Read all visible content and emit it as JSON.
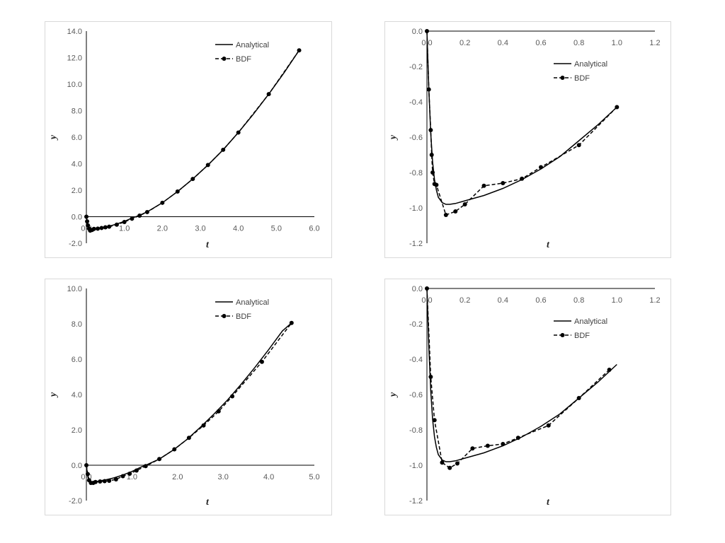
{
  "chart_data": [
    {
      "type": "line",
      "xlabel": "t",
      "ylabel": "y",
      "xlim": [
        0,
        6
      ],
      "ylim": [
        -2,
        14
      ],
      "x_ticks": [
        "0.0",
        "1.0",
        "2.0",
        "3.0",
        "4.0",
        "5.0",
        "6.0"
      ],
      "y_ticks": [
        "-2.0",
        "0.0",
        "2.0",
        "4.0",
        "6.0",
        "8.0",
        "10.0",
        "12.0",
        "14.0"
      ],
      "legend": {
        "placement": "top-center",
        "entries": [
          "Analytical",
          "BDF"
        ]
      },
      "grid": false,
      "series": [
        {
          "name": "Analytical",
          "style": "solid",
          "x": [
            0,
            0.02,
            0.04,
            0.07,
            0.1,
            0.15,
            0.2,
            0.3,
            0.4,
            0.5,
            0.6,
            0.8,
            1.0,
            1.2,
            1.4,
            1.6,
            2.0,
            2.4,
            2.8,
            3.2,
            3.6,
            4.0,
            4.4,
            4.8,
            5.2,
            5.6
          ],
          "y": [
            0,
            -0.45,
            -0.75,
            -0.95,
            -0.98,
            -0.97,
            -0.94,
            -0.88,
            -0.84,
            -0.78,
            -0.72,
            -0.55,
            -0.35,
            -0.1,
            0.1,
            0.37,
            1.05,
            1.9,
            2.85,
            3.9,
            5.05,
            6.35,
            7.75,
            9.25,
            10.85,
            12.55
          ]
        },
        {
          "name": "BDF",
          "style": "dashed-markers",
          "x": [
            0,
            0.02,
            0.04,
            0.07,
            0.1,
            0.15,
            0.2,
            0.3,
            0.4,
            0.5,
            0.6,
            0.8,
            1.0,
            1.2,
            1.4,
            1.6,
            2.0,
            2.4,
            2.8,
            3.2,
            3.6,
            4.0,
            4.8,
            5.6
          ],
          "y": [
            0,
            -0.35,
            -0.65,
            -0.9,
            -1.05,
            -1.0,
            -0.92,
            -0.9,
            -0.85,
            -0.8,
            -0.75,
            -0.6,
            -0.4,
            -0.15,
            0.08,
            0.35,
            1.05,
            1.9,
            2.85,
            3.9,
            5.05,
            6.35,
            9.25,
            12.55
          ]
        }
      ]
    },
    {
      "type": "line",
      "xlabel": "t",
      "ylabel": "y",
      "xlim": [
        0,
        1.2
      ],
      "ylim": [
        -1.2,
        0
      ],
      "x_ticks": [
        "0.0",
        "0.2",
        "0.4",
        "0.6",
        "0.8",
        "1.0",
        "1.2"
      ],
      "y_ticks": [
        "-1.2",
        "-1.0",
        "-0.8",
        "-0.6",
        "-0.4",
        "-0.2",
        "0.0"
      ],
      "legend": {
        "placement": "top-right",
        "entries": [
          "Analytical",
          "BDF"
        ]
      },
      "grid": false,
      "series": [
        {
          "name": "Analytical",
          "style": "solid",
          "x": [
            0,
            0.01,
            0.02,
            0.03,
            0.04,
            0.05,
            0.06,
            0.08,
            0.1,
            0.12,
            0.15,
            0.2,
            0.3,
            0.4,
            0.5,
            0.6,
            0.7,
            0.8,
            0.9,
            1.0
          ],
          "y": [
            0,
            -0.33,
            -0.58,
            -0.74,
            -0.84,
            -0.9,
            -0.94,
            -0.97,
            -0.98,
            -0.98,
            -0.975,
            -0.96,
            -0.93,
            -0.89,
            -0.84,
            -0.78,
            -0.71,
            -0.62,
            -0.53,
            -0.43
          ]
        },
        {
          "name": "BDF",
          "style": "dashed-markers",
          "x": [
            0,
            0.01,
            0.02,
            0.025,
            0.03,
            0.04,
            0.05,
            0.1,
            0.15,
            0.2,
            0.3,
            0.4,
            0.5,
            0.6,
            0.8,
            1.0
          ],
          "y": [
            0,
            -0.33,
            -0.56,
            -0.7,
            -0.8,
            -0.865,
            -0.87,
            -1.04,
            -1.02,
            -0.98,
            -0.875,
            -0.86,
            -0.835,
            -0.77,
            -0.645,
            -0.43
          ]
        }
      ]
    },
    {
      "type": "line",
      "xlabel": "t",
      "ylabel": "y",
      "xlim": [
        0,
        5
      ],
      "ylim": [
        -2,
        10
      ],
      "x_ticks": [
        "0.0",
        "1.0",
        "2.0",
        "3.0",
        "4.0",
        "5.0"
      ],
      "y_ticks": [
        "-2.0",
        "0.0",
        "2.0",
        "4.0",
        "6.0",
        "8.0",
        "10.0"
      ],
      "legend": {
        "placement": "top-center",
        "entries": [
          "Analytical",
          "BDF"
        ]
      },
      "grid": false,
      "series": [
        {
          "name": "Analytical",
          "style": "solid",
          "x": [
            0,
            0.02,
            0.04,
            0.07,
            0.1,
            0.15,
            0.2,
            0.3,
            0.4,
            0.5,
            0.6,
            0.8,
            1.0,
            1.2,
            1.3,
            1.6,
            1.9,
            2.2,
            2.5,
            2.8,
            3.1,
            3.4,
            3.7,
            4.0,
            4.3,
            4.5
          ],
          "y": [
            0,
            -0.45,
            -0.75,
            -0.95,
            -0.98,
            -0.97,
            -0.94,
            -0.88,
            -0.84,
            -0.78,
            -0.72,
            -0.55,
            -0.35,
            -0.1,
            0.0,
            0.35,
            0.85,
            1.45,
            2.15,
            2.9,
            3.7,
            4.6,
            5.55,
            6.55,
            7.6,
            8.05
          ]
        },
        {
          "name": "BDF",
          "style": "dashed-markers",
          "x": [
            0,
            0.03,
            0.06,
            0.1,
            0.15,
            0.2,
            0.3,
            0.4,
            0.5,
            0.65,
            0.8,
            0.95,
            1.1,
            1.3,
            1.6,
            1.93,
            2.25,
            2.57,
            2.9,
            3.2,
            3.85,
            4.5
          ],
          "y": [
            0,
            -0.5,
            -0.85,
            -1.0,
            -1.0,
            -0.95,
            -0.92,
            -0.9,
            -0.88,
            -0.8,
            -0.62,
            -0.48,
            -0.3,
            -0.05,
            0.35,
            0.9,
            1.55,
            2.25,
            3.05,
            3.9,
            5.85,
            8.05
          ]
        }
      ]
    },
    {
      "type": "line",
      "xlabel": "t",
      "ylabel": "y",
      "xlim": [
        0,
        1.2
      ],
      "ylim": [
        -1.2,
        0
      ],
      "x_ticks": [
        "0.0",
        "0.2",
        "0.4",
        "0.6",
        "0.8",
        "1.0",
        "1.2"
      ],
      "y_ticks": [
        "-1.2",
        "-1.0",
        "-0.8",
        "-0.6",
        "-0.4",
        "-0.2",
        "0.0"
      ],
      "legend": {
        "placement": "top-right",
        "entries": [
          "Analytical",
          "BDF"
        ]
      },
      "grid": false,
      "series": [
        {
          "name": "Analytical",
          "style": "solid",
          "x": [
            0,
            0.01,
            0.02,
            0.03,
            0.04,
            0.05,
            0.06,
            0.08,
            0.1,
            0.12,
            0.15,
            0.2,
            0.3,
            0.4,
            0.5,
            0.6,
            0.7,
            0.8,
            0.9,
            1.0
          ],
          "y": [
            0,
            -0.33,
            -0.58,
            -0.74,
            -0.84,
            -0.9,
            -0.94,
            -0.97,
            -0.98,
            -0.98,
            -0.975,
            -0.96,
            -0.93,
            -0.89,
            -0.84,
            -0.78,
            -0.71,
            -0.62,
            -0.53,
            -0.43
          ]
        },
        {
          "name": "BDF",
          "style": "dashed-markers",
          "x": [
            0,
            0.02,
            0.04,
            0.08,
            0.12,
            0.16,
            0.24,
            0.32,
            0.4,
            0.48,
            0.64,
            0.8,
            0.96
          ],
          "y": [
            0,
            -0.5,
            -0.745,
            -0.985,
            -1.015,
            -0.99,
            -0.905,
            -0.89,
            -0.88,
            -0.845,
            -0.775,
            -0.62,
            -0.46
          ]
        }
      ]
    }
  ]
}
